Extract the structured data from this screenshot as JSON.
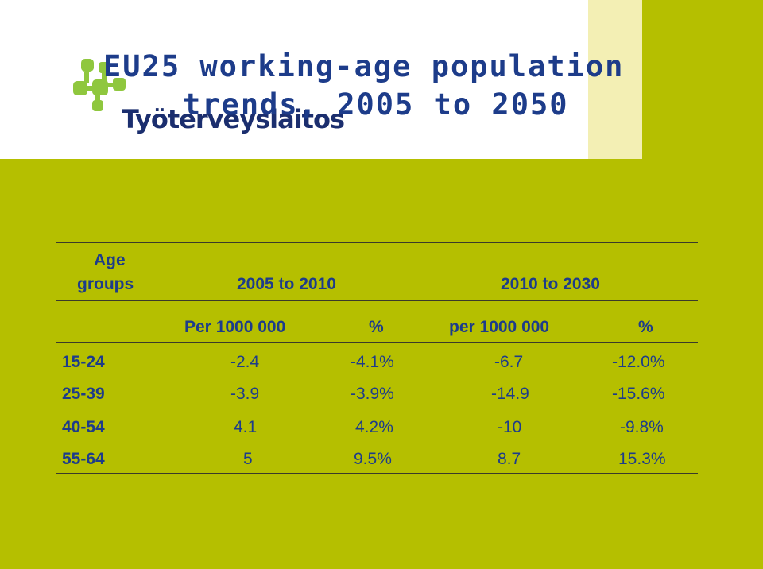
{
  "title": {
    "line1": "EU25 working-age population",
    "line2": "trends, 2005 to 2050"
  },
  "logo": {
    "text": "Työterveyslaitos",
    "icon": "molecule-dots-icon",
    "color": "#8fc73e"
  },
  "colors": {
    "accent_green": "#b5bf00",
    "pale_yellow": "#f3efb4",
    "text_blue": "#1d3c8a"
  },
  "table": {
    "header": {
      "age_line1": "Age",
      "age_line2": "groups",
      "period1": "2005 to 2010",
      "period2": "2010 to 2030"
    },
    "subheader": {
      "col1": "Per 1000 000",
      "col2": "%",
      "col3": "per 1000 000",
      "col4": "%"
    },
    "rows": [
      {
        "age": "15-24",
        "v1": "-2.4",
        "p1": "-4.1%",
        "v2": "-6.7",
        "p2": "-12.0%"
      },
      {
        "age": "25-39",
        "v1": "-3.9",
        "p1": "-3.9%",
        "v2": "-14.9",
        "p2": "-15.6%"
      },
      {
        "age": "40-54",
        "v1": "4.1",
        "p1": "4.2%",
        "v2": "-10",
        "p2": "-9.8%"
      },
      {
        "age": "55-64",
        "v1": "5",
        "p1": "9.5%",
        "v2": "8.7",
        "p2": "15.3%"
      }
    ]
  }
}
